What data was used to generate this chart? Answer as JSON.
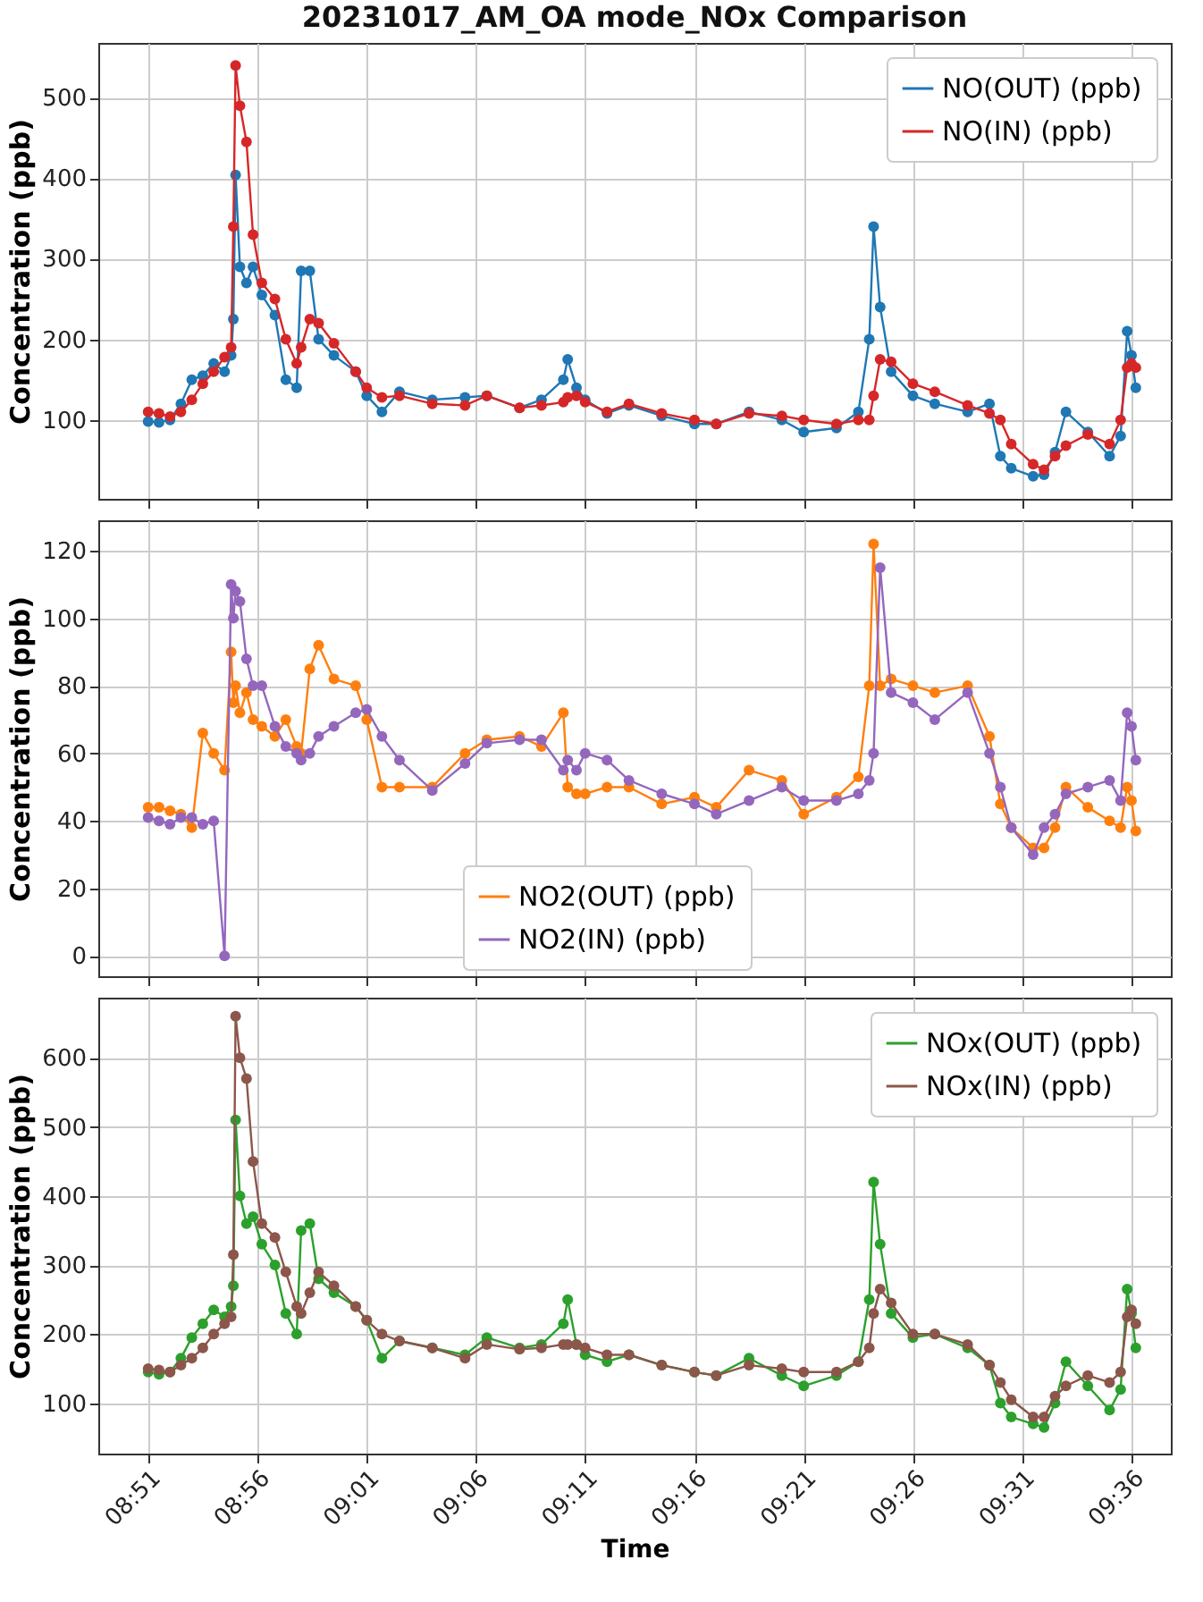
{
  "chart_data": [
    {
      "type": "line",
      "title": "20231017_AM_OA mode_NOx Comparison",
      "ylabel": "Concentration (ppb)",
      "grid": true,
      "legend": "top right",
      "marker": "circle",
      "tick_labels": "y",
      "xlim": [
        8.812,
        9.63
      ],
      "ylim": [
        2,
        568
      ],
      "yticks": [
        100,
        200,
        300,
        400,
        500
      ],
      "xticks": [
        {
          "value": 8.85,
          "label": null
        },
        {
          "value": 8.9333,
          "label": null
        },
        {
          "value": 9.0167,
          "label": null
        },
        {
          "value": 9.1,
          "label": null
        },
        {
          "value": 9.1833,
          "label": null
        },
        {
          "value": 9.2667,
          "label": null
        },
        {
          "value": 9.35,
          "label": null
        },
        {
          "value": 9.4333,
          "label": null
        },
        {
          "value": 9.5167,
          "label": null
        },
        {
          "value": 9.6,
          "label": null
        }
      ],
      "x": [
        8.85,
        8.8583,
        8.8667,
        8.875,
        8.8833,
        8.8917,
        8.9,
        8.9083,
        8.9133,
        8.915,
        8.9167,
        8.92,
        8.925,
        8.93,
        8.9367,
        8.9467,
        8.955,
        8.9633,
        8.9667,
        8.9733,
        8.98,
        8.9917,
        9.0083,
        9.0167,
        9.0283,
        9.0417,
        9.0667,
        9.0917,
        9.1083,
        9.1333,
        9.15,
        9.1667,
        9.17,
        9.1767,
        9.1833,
        9.2,
        9.2167,
        9.2417,
        9.2667,
        9.2833,
        9.3083,
        9.3333,
        9.35,
        9.375,
        9.3917,
        9.4,
        9.4033,
        9.4083,
        9.4167,
        9.4333,
        9.45,
        9.475,
        9.4917,
        9.5,
        9.5083,
        9.525,
        9.5333,
        9.5417,
        9.55,
        9.5667,
        9.5833,
        9.5917,
        9.5967,
        9.6,
        9.6033
      ],
      "series": [
        {
          "name": "NO(OUT) (ppb)",
          "color": "#1f77b4",
          "values": [
            98,
            97,
            100,
            120,
            150,
            155,
            170,
            160,
            180,
            225,
            404,
            290,
            270,
            290,
            255,
            230,
            150,
            140,
            285,
            285,
            200,
            180,
            160,
            130,
            110,
            135,
            125,
            128,
            130,
            115,
            125,
            150,
            175,
            140,
            125,
            108,
            118,
            105,
            95,
            95,
            110,
            100,
            85,
            90,
            110,
            200,
            340,
            240,
            160,
            130,
            120,
            110,
            120,
            55,
            40,
            30,
            32,
            60,
            110,
            85,
            55,
            80,
            210,
            180,
            140
          ]
        },
        {
          "name": "NO(IN) (ppb)",
          "color": "#d62728",
          "values": [
            110,
            108,
            104,
            110,
            125,
            145,
            160,
            178,
            190,
            340,
            540,
            490,
            445,
            330,
            270,
            250,
            200,
            170,
            190,
            225,
            220,
            195,
            160,
            140,
            128,
            130,
            120,
            118,
            130,
            115,
            118,
            122,
            128,
            130,
            122,
            110,
            120,
            108,
            100,
            95,
            108,
            105,
            100,
            95,
            100,
            100,
            130,
            175,
            172,
            145,
            135,
            118,
            108,
            100,
            70,
            45,
            38,
            55,
            68,
            82,
            70,
            100,
            165,
            170,
            165
          ]
        }
      ]
    },
    {
      "type": "line",
      "ylabel": "Concentration (ppb)",
      "grid": true,
      "legend": "bottom",
      "marker": "circle",
      "tick_labels": "y",
      "xlim": [
        8.812,
        9.63
      ],
      "ylim": [
        -6,
        129
      ],
      "yticks": [
        0,
        20,
        40,
        60,
        80,
        100,
        120
      ],
      "xticks": [
        {
          "value": 8.85,
          "label": null
        },
        {
          "value": 8.9333,
          "label": null
        },
        {
          "value": 9.0167,
          "label": null
        },
        {
          "value": 9.1,
          "label": null
        },
        {
          "value": 9.1833,
          "label": null
        },
        {
          "value": 9.2667,
          "label": null
        },
        {
          "value": 9.35,
          "label": null
        },
        {
          "value": 9.4333,
          "label": null
        },
        {
          "value": 9.5167,
          "label": null
        },
        {
          "value": 9.6,
          "label": null
        }
      ],
      "x": [
        8.85,
        8.8583,
        8.8667,
        8.875,
        8.8833,
        8.8917,
        8.9,
        8.9083,
        8.9133,
        8.915,
        8.9167,
        8.92,
        8.925,
        8.93,
        8.9367,
        8.9467,
        8.955,
        8.9633,
        8.9667,
        8.9733,
        8.98,
        8.9917,
        9.0083,
        9.0167,
        9.0283,
        9.0417,
        9.0667,
        9.0917,
        9.1083,
        9.1333,
        9.15,
        9.1667,
        9.17,
        9.1767,
        9.1833,
        9.2,
        9.2167,
        9.2417,
        9.2667,
        9.2833,
        9.3083,
        9.3333,
        9.35,
        9.375,
        9.3917,
        9.4,
        9.4033,
        9.4083,
        9.4167,
        9.4333,
        9.45,
        9.475,
        9.4917,
        9.5,
        9.5083,
        9.525,
        9.5333,
        9.5417,
        9.55,
        9.5667,
        9.5833,
        9.5917,
        9.5967,
        9.6,
        9.6033
      ],
      "series": [
        {
          "name": "NO2(OUT) (ppb)",
          "color": "#ff7f0e",
          "values": [
            44,
            44,
            43,
            42,
            38,
            66,
            60,
            55,
            90,
            75,
            80,
            72,
            78,
            70,
            68,
            65,
            70,
            62,
            60,
            85,
            92,
            82,
            80,
            70,
            50,
            50,
            50,
            60,
            64,
            65,
            62,
            72,
            50,
            48,
            48,
            50,
            50,
            45,
            47,
            44,
            55,
            52,
            42,
            47,
            53,
            80,
            122,
            80,
            82,
            80,
            78,
            80,
            65,
            45,
            38,
            32,
            32,
            38,
            50,
            44,
            40,
            38,
            50,
            46,
            37
          ]
        },
        {
          "name": "NO2(IN) (ppb)",
          "color": "#9467bd",
          "values": [
            41,
            40,
            39,
            41,
            41,
            39,
            40,
            0,
            110,
            100,
            108,
            105,
            88,
            80,
            80,
            68,
            62,
            60,
            58,
            60,
            65,
            68,
            72,
            73,
            65,
            58,
            49,
            57,
            63,
            64,
            64,
            55,
            58,
            55,
            60,
            58,
            52,
            48,
            45,
            42,
            46,
            50,
            46,
            46,
            48,
            52,
            60,
            115,
            78,
            75,
            70,
            78,
            60,
            50,
            38,
            30,
            38,
            42,
            48,
            50,
            52,
            46,
            72,
            68,
            58
          ]
        }
      ]
    },
    {
      "type": "line",
      "xlabel": "Time",
      "ylabel": "Concentration (ppb)",
      "grid": true,
      "legend": "top right",
      "marker": "circle",
      "xlim": [
        8.812,
        9.63
      ],
      "ylim": [
        27,
        687
      ],
      "yticks": [
        100,
        200,
        300,
        400,
        500,
        600
      ],
      "xticks": [
        {
          "value": 8.85,
          "label": "08:51"
        },
        {
          "value": 8.9333,
          "label": "08:56"
        },
        {
          "value": 9.0167,
          "label": "09:01"
        },
        {
          "value": 9.1,
          "label": "09:06"
        },
        {
          "value": 9.1833,
          "label": "09:11"
        },
        {
          "value": 9.2667,
          "label": "09:16"
        },
        {
          "value": 9.35,
          "label": "09:21"
        },
        {
          "value": 9.4333,
          "label": "09:26"
        },
        {
          "value": 9.5167,
          "label": "09:31"
        },
        {
          "value": 9.6,
          "label": "09:36"
        }
      ],
      "x": [
        8.85,
        8.8583,
        8.8667,
        8.875,
        8.8833,
        8.8917,
        8.9,
        8.9083,
        8.9133,
        8.915,
        8.9167,
        8.92,
        8.925,
        8.93,
        8.9367,
        8.9467,
        8.955,
        8.9633,
        8.9667,
        8.9733,
        8.98,
        8.9917,
        9.0083,
        9.0167,
        9.0283,
        9.0417,
        9.0667,
        9.0917,
        9.1083,
        9.1333,
        9.15,
        9.1667,
        9.17,
        9.1767,
        9.1833,
        9.2,
        9.2167,
        9.2417,
        9.2667,
        9.2833,
        9.3083,
        9.3333,
        9.35,
        9.375,
        9.3917,
        9.4,
        9.4033,
        9.4083,
        9.4167,
        9.4333,
        9.45,
        9.475,
        9.4917,
        9.5,
        9.5083,
        9.525,
        9.5333,
        9.5417,
        9.55,
        9.5667,
        9.5833,
        9.5917,
        9.5967,
        9.6,
        9.6033
      ],
      "series": [
        {
          "name": "NOx(OUT) (ppb)",
          "color": "#2ca02c",
          "values": [
            145,
            142,
            145,
            165,
            195,
            215,
            235,
            225,
            240,
            270,
            510,
            400,
            360,
            370,
            330,
            300,
            230,
            200,
            350,
            360,
            280,
            260,
            240,
            220,
            165,
            190,
            180,
            170,
            195,
            180,
            185,
            215,
            250,
            185,
            170,
            160,
            170,
            155,
            145,
            140,
            165,
            140,
            125,
            140,
            160,
            250,
            420,
            330,
            230,
            195,
            200,
            180,
            155,
            100,
            80,
            70,
            65,
            100,
            160,
            125,
            90,
            120,
            265,
            230,
            180
          ]
        },
        {
          "name": "NOx(IN) (ppb)",
          "color": "#8c564b",
          "values": [
            150,
            148,
            145,
            155,
            165,
            180,
            200,
            215,
            225,
            315,
            660,
            600,
            570,
            450,
            360,
            340,
            290,
            240,
            230,
            260,
            290,
            270,
            240,
            220,
            200,
            190,
            180,
            165,
            185,
            178,
            180,
            185,
            185,
            185,
            180,
            170,
            170,
            155,
            145,
            140,
            155,
            150,
            145,
            145,
            160,
            180,
            230,
            265,
            245,
            200,
            200,
            185,
            155,
            130,
            105,
            80,
            80,
            110,
            125,
            140,
            130,
            145,
            225,
            235,
            215
          ]
        }
      ]
    }
  ]
}
